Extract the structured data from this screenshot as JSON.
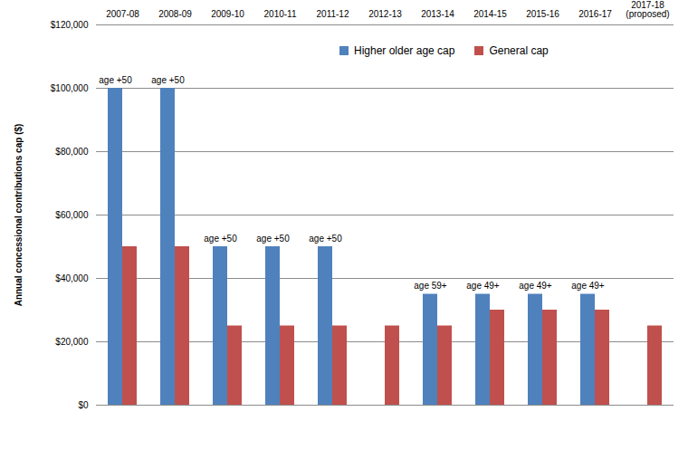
{
  "chart_data": {
    "type": "bar",
    "categories": [
      "2007-08",
      "2008-09",
      "2009-10",
      "2010-11",
      "2011-12",
      "2012-13",
      "2013-14",
      "2014-15",
      "2015-16",
      "2016-17",
      "2017-18 (proposed)"
    ],
    "series": [
      {
        "name": "Higher older age cap",
        "color": "#4f81bd",
        "values": [
          100000,
          100000,
          50000,
          50000,
          50000,
          null,
          35000,
          35000,
          35000,
          35000,
          null
        ],
        "annotations": [
          "age +50",
          "age +50",
          "age +50",
          "age +50",
          "age +50",
          null,
          "age 59+",
          "age 49+",
          "age 49+",
          "age 49+",
          null
        ]
      },
      {
        "name": "General cap",
        "color": "#c0504d",
        "values": [
          50000,
          50000,
          25000,
          25000,
          25000,
          25000,
          25000,
          30000,
          30000,
          30000,
          25000
        ]
      }
    ],
    "y_label": "Annual concessional contributions cap ($)",
    "ylim": [
      0,
      120000
    ],
    "yticks": [
      {
        "value": 0,
        "label": "$0"
      },
      {
        "value": 20000,
        "label": "$20,000"
      },
      {
        "value": 40000,
        "label": "$40,000"
      },
      {
        "value": 60000,
        "label": "$60,000"
      },
      {
        "value": 80000,
        "label": "$80,000"
      },
      {
        "value": 100000,
        "label": "$100,000"
      },
      {
        "value": 120000,
        "label": "$120,000"
      }
    ],
    "grid": true,
    "legend": "top"
  }
}
